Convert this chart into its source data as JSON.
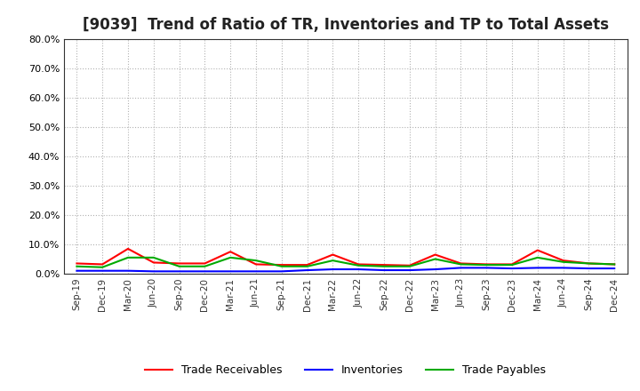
{
  "title": "[9039]  Trend of Ratio of TR, Inventories and TP to Total Assets",
  "x_labels": [
    "Sep-19",
    "Dec-19",
    "Mar-20",
    "Jun-20",
    "Sep-20",
    "Dec-20",
    "Mar-21",
    "Jun-21",
    "Sep-21",
    "Dec-21",
    "Mar-22",
    "Jun-22",
    "Sep-22",
    "Dec-22",
    "Mar-23",
    "Jun-23",
    "Sep-23",
    "Dec-23",
    "Mar-24",
    "Jun-24",
    "Sep-24",
    "Dec-24"
  ],
  "trade_receivables": [
    3.5,
    3.2,
    8.5,
    3.8,
    3.5,
    3.5,
    7.5,
    3.2,
    3.0,
    3.0,
    6.5,
    3.2,
    3.0,
    2.8,
    6.5,
    3.5,
    3.2,
    3.2,
    8.0,
    4.5,
    3.5,
    3.2
  ],
  "inventories": [
    1.0,
    1.0,
    1.0,
    0.8,
    0.8,
    0.8,
    0.8,
    0.8,
    0.8,
    1.2,
    1.5,
    1.5,
    1.2,
    1.2,
    1.5,
    2.0,
    2.0,
    1.8,
    2.0,
    2.0,
    1.8,
    1.8
  ],
  "trade_payables": [
    2.5,
    2.2,
    5.5,
    5.5,
    2.5,
    2.5,
    5.5,
    4.5,
    2.5,
    2.5,
    4.5,
    2.8,
    2.5,
    2.5,
    5.0,
    3.2,
    3.0,
    3.0,
    5.5,
    4.0,
    3.5,
    3.2
  ],
  "tr_color": "#FF0000",
  "inv_color": "#0000FF",
  "tp_color": "#00AA00",
  "ylim": [
    0.0,
    80.0
  ],
  "yticks": [
    0.0,
    10.0,
    20.0,
    30.0,
    40.0,
    50.0,
    60.0,
    70.0,
    80.0
  ],
  "background_color": "#FFFFFF",
  "grid_color": "#AAAAAA",
  "title_fontsize": 12,
  "legend_labels": [
    "Trade Receivables",
    "Inventories",
    "Trade Payables"
  ]
}
